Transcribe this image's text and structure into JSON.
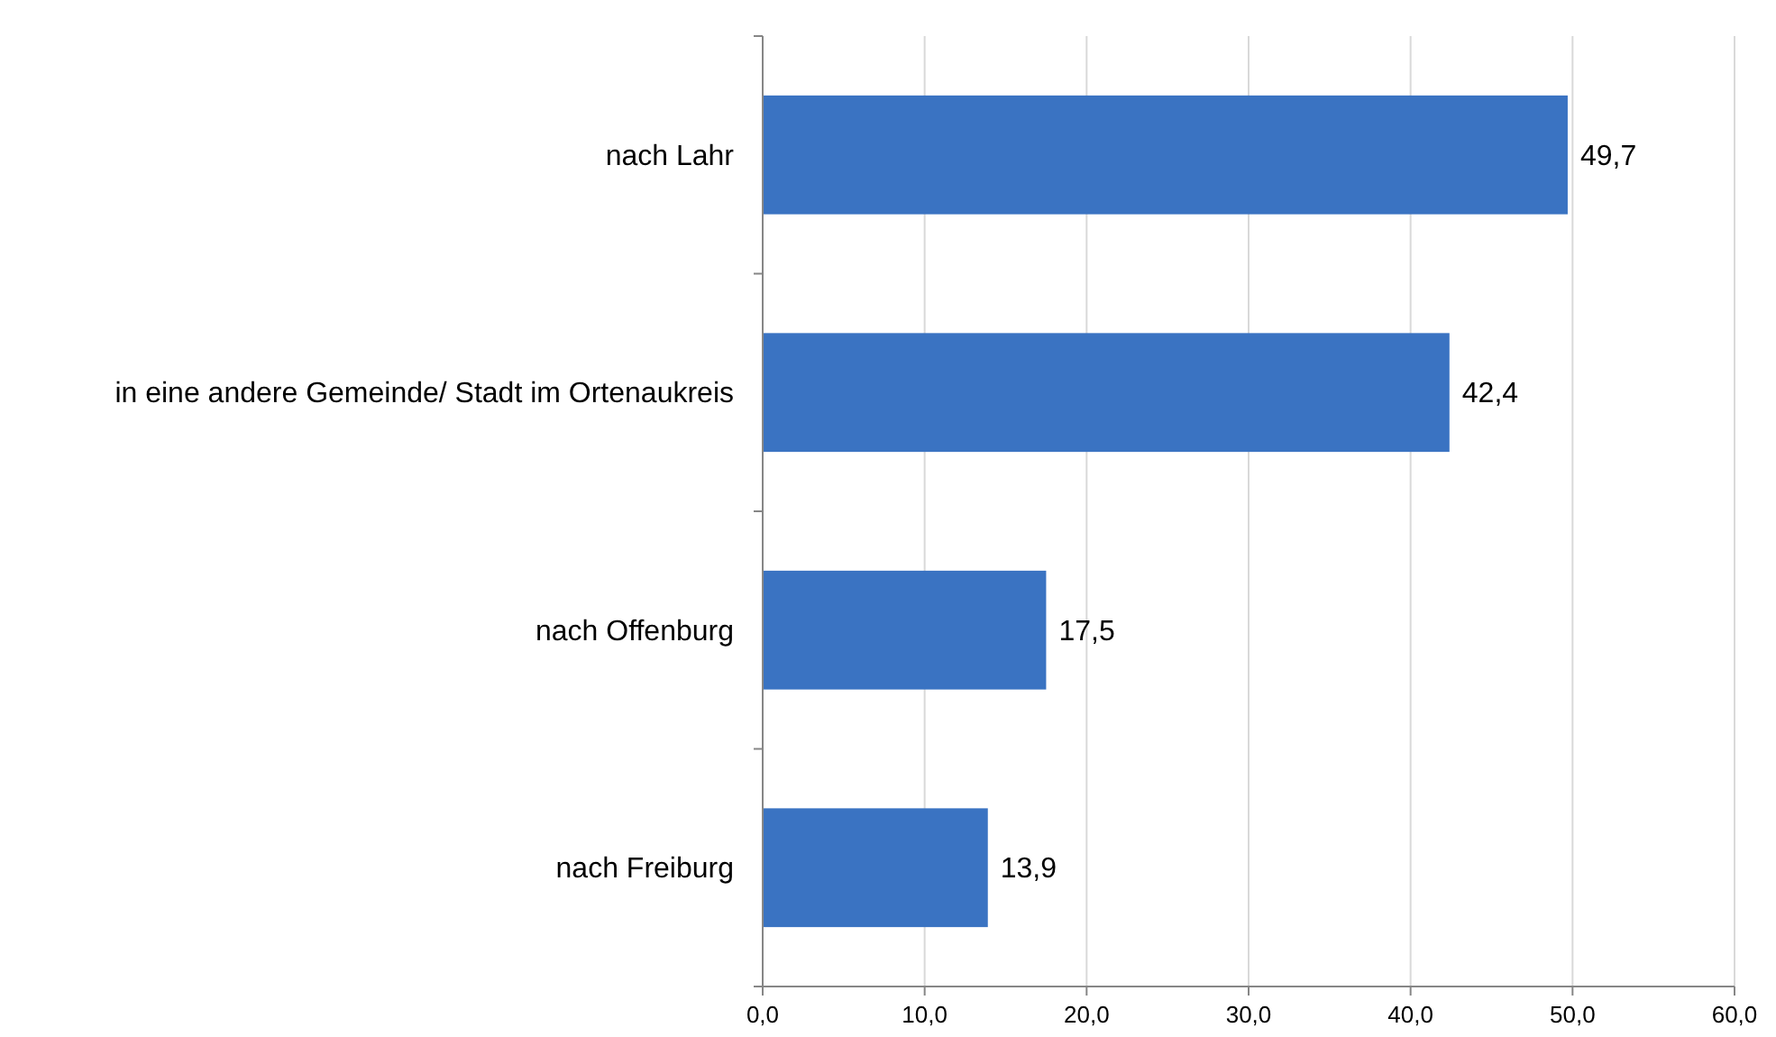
{
  "chart_data": {
    "type": "bar",
    "orientation": "horizontal",
    "categories": [
      "nach Lahr",
      "in eine andere Gemeinde/ Stadt im Ortenaukreis",
      "nach Offenburg",
      "nach Freiburg"
    ],
    "values": [
      49.7,
      42.4,
      17.5,
      13.9
    ],
    "value_labels": [
      "49,7",
      "42,4",
      "17,5",
      "13,9"
    ],
    "color": "#3a73c2",
    "xlim": [
      0,
      60
    ],
    "xticks": [
      {
        "value": 0,
        "label": "0,0"
      },
      {
        "value": 10,
        "label": "10,0"
      },
      {
        "value": 20,
        "label": "20,0"
      },
      {
        "value": 30,
        "label": "30,0"
      },
      {
        "value": 40,
        "label": "40,0"
      },
      {
        "value": 50,
        "label": "50,0"
      },
      {
        "value": 60,
        "label": "60,0"
      }
    ],
    "grid": "x"
  }
}
